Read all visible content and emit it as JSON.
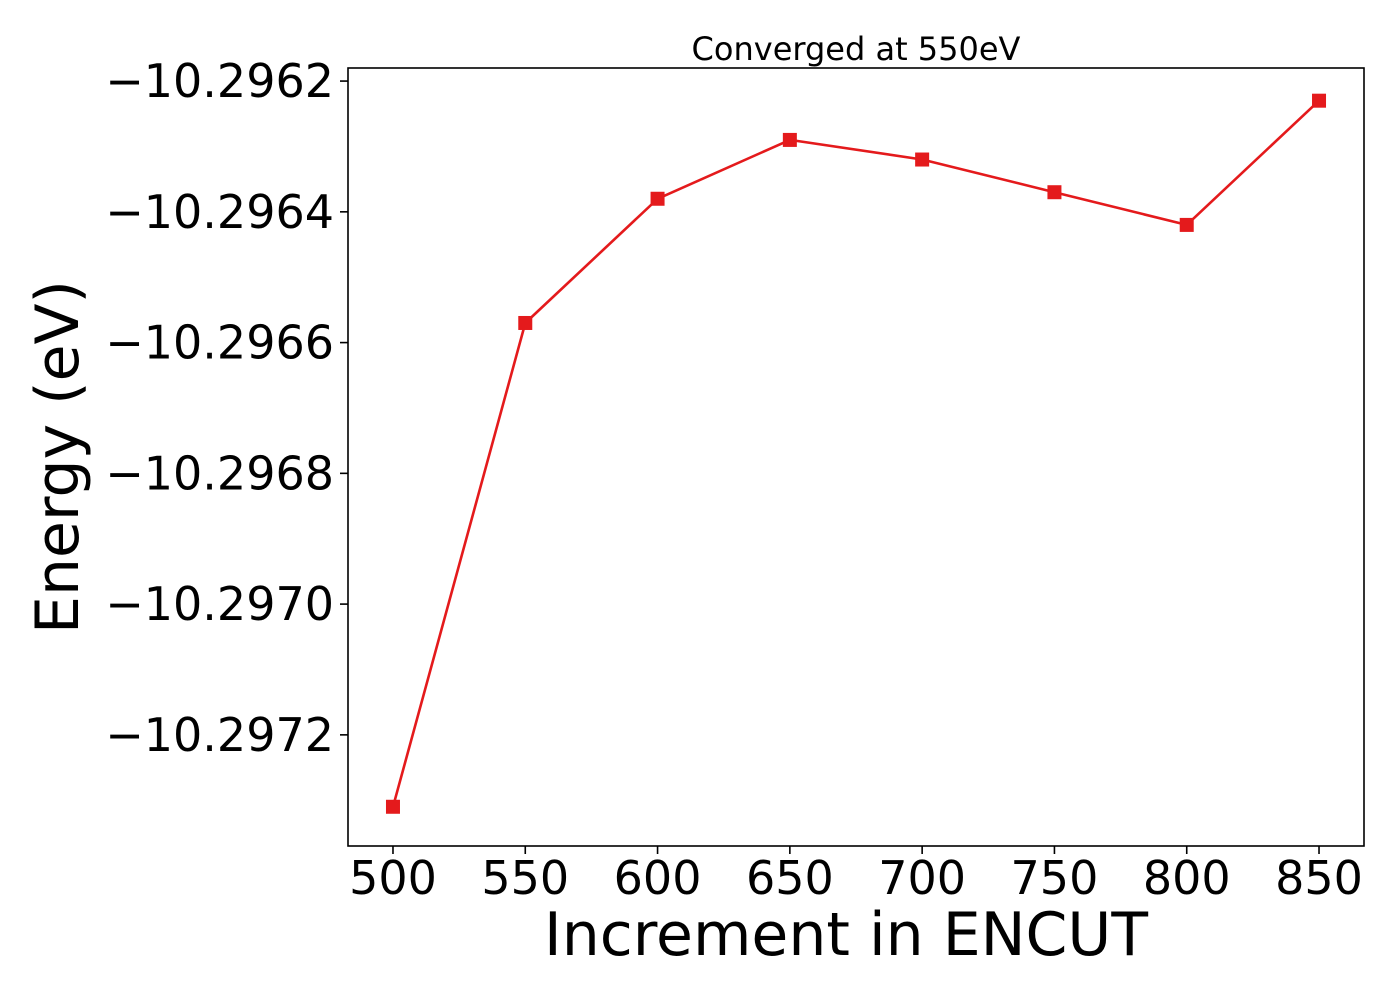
{
  "chart_data": {
    "type": "line",
    "title": "Converged at 550eV",
    "xlabel": "Increment in ENCUT",
    "ylabel": "Energy (eV)",
    "x": [
      500,
      550,
      600,
      650,
      700,
      750,
      800,
      850
    ],
    "series": [
      {
        "color": "#e41a1c",
        "marker": "square",
        "values": [
          -10.29731,
          -10.29657,
          -10.29638,
          -10.29629,
          -10.29632,
          -10.29637,
          -10.29642,
          -10.29623
        ]
      }
    ],
    "xlim": [
      483,
      867
    ],
    "ylim": [
      -10.29737,
      -10.29618
    ],
    "xticks": [
      500,
      550,
      600,
      650,
      700,
      750,
      800,
      850
    ],
    "xtick_labels": [
      "500",
      "550",
      "600",
      "650",
      "700",
      "750",
      "800",
      "850"
    ],
    "yticks": [
      -10.2962,
      -10.2964,
      -10.2966,
      -10.2968,
      -10.297,
      -10.2972
    ],
    "ytick_labels": [
      "−10.2962",
      "−10.2964",
      "−10.2966",
      "−10.2968",
      "−10.2970",
      "−10.2972"
    ],
    "grid": false
  }
}
